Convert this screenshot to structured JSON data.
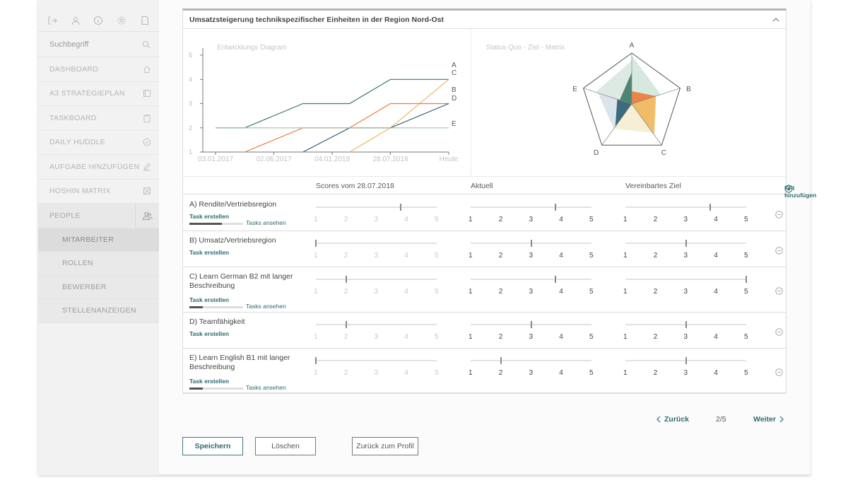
{
  "sidebar": {
    "search_placeholder": "Suchbegriff",
    "nav": [
      {
        "label": "DASHBOARD",
        "icon": "home-icon"
      },
      {
        "label": "A3 STRATEGIEPLAN",
        "icon": "document-icon"
      },
      {
        "label": "TASKBOARD",
        "icon": "clipboard-icon"
      },
      {
        "label": "DAILY HUDDLE",
        "icon": "check-circle-icon"
      },
      {
        "label": "AUFGABE HINZUFÜGEN",
        "icon": "pencil-icon"
      },
      {
        "label": "HOSHIN MATRIX",
        "icon": "matrix-icon"
      },
      {
        "label": "PEOPLE",
        "icon": "people-icon"
      }
    ],
    "sub": [
      "MITARBEITER",
      "ROLLEN",
      "BEWERBER",
      "STELLENANZEIGEN"
    ]
  },
  "card": {
    "title": "Umsatzsteigerung technikspezifischer Einheiten in der Region Nord-Ost"
  },
  "chart_data": [
    {
      "type": "line",
      "title": "Entwicklungs Diagram",
      "x": [
        "03.01.2017",
        "02.06.2017",
        "04.01.2018",
        "28.07.2018",
        "Heute"
      ],
      "ylim": [
        1,
        5
      ],
      "yticks": [
        "1",
        "2",
        "3",
        "4",
        "5"
      ],
      "series": [
        {
          "name": "A",
          "color": "#3d7a6e",
          "points": [
            [
              0,
              2
            ],
            [
              0.5,
              2
            ],
            [
              1.5,
              3
            ],
            [
              2.3,
              3
            ],
            [
              3,
              4
            ],
            [
              4,
              4
            ]
          ]
        },
        {
          "name": "C",
          "color": "#f0b860",
          "points": [
            [
              2.3,
              1
            ],
            [
              3,
              2
            ],
            [
              4,
              4
            ]
          ]
        },
        {
          "name": "B",
          "color": "#f07a3a",
          "points": [
            [
              0.5,
              1
            ],
            [
              1.5,
              2
            ],
            [
              2.3,
              2
            ],
            [
              3,
              3
            ],
            [
              4,
              3
            ]
          ]
        },
        {
          "name": "D",
          "color": "#2f5f73",
          "points": [
            [
              1.5,
              1
            ],
            [
              2.3,
              2
            ],
            [
              3,
              2
            ],
            [
              4,
              3
            ]
          ]
        },
        {
          "name": "E",
          "color": "#9fbfa8",
          "points": [
            [
              0,
              2
            ],
            [
              4,
              2
            ]
          ]
        }
      ]
    },
    {
      "type": "radar",
      "title": "Status Quo - Ziel - Matrix",
      "axes": [
        "A",
        "B",
        "C",
        "D",
        "E"
      ]
    }
  ],
  "table": {
    "col_scores": "Scores vom 28.07.2018",
    "col_current": "Aktuell",
    "col_target": "Vereinbartes Ziel",
    "kpi_add": "KPI hinzufügen",
    "scale": [
      "1",
      "2",
      "3",
      "4",
      "5"
    ],
    "task_create": "Task erstellen",
    "tasks_view": "Tasks ansehen",
    "rows": [
      {
        "label": "A) Rendite/Vertriebsregion",
        "score": 3.8,
        "current": 3.8,
        "target": 3.8,
        "progress": 0.6
      },
      {
        "label": "B) Umsatz/Vertriebsregion",
        "score": 1.0,
        "current": 3.0,
        "target": 3.0
      },
      {
        "label": "C) Learn German B2 mit langer Beschreibung",
        "score": 2.0,
        "current": 3.8,
        "target": 5.0,
        "progress": 0.25
      },
      {
        "label": "D) Teamfähigkeit",
        "score": 2.0,
        "current": 3.0,
        "target": 3.0
      },
      {
        "label": "E) Learn English B1 mit langer Beschreibung",
        "score": 1.0,
        "current": 2.0,
        "target": 3.0,
        "progress": 0.25
      }
    ]
  },
  "pager": {
    "prev": "Zurück",
    "page": "2/5",
    "next": "Weiter"
  },
  "buttons": {
    "save": "Speichern",
    "delete": "Löschen",
    "back": "Zurück zum Profil"
  }
}
